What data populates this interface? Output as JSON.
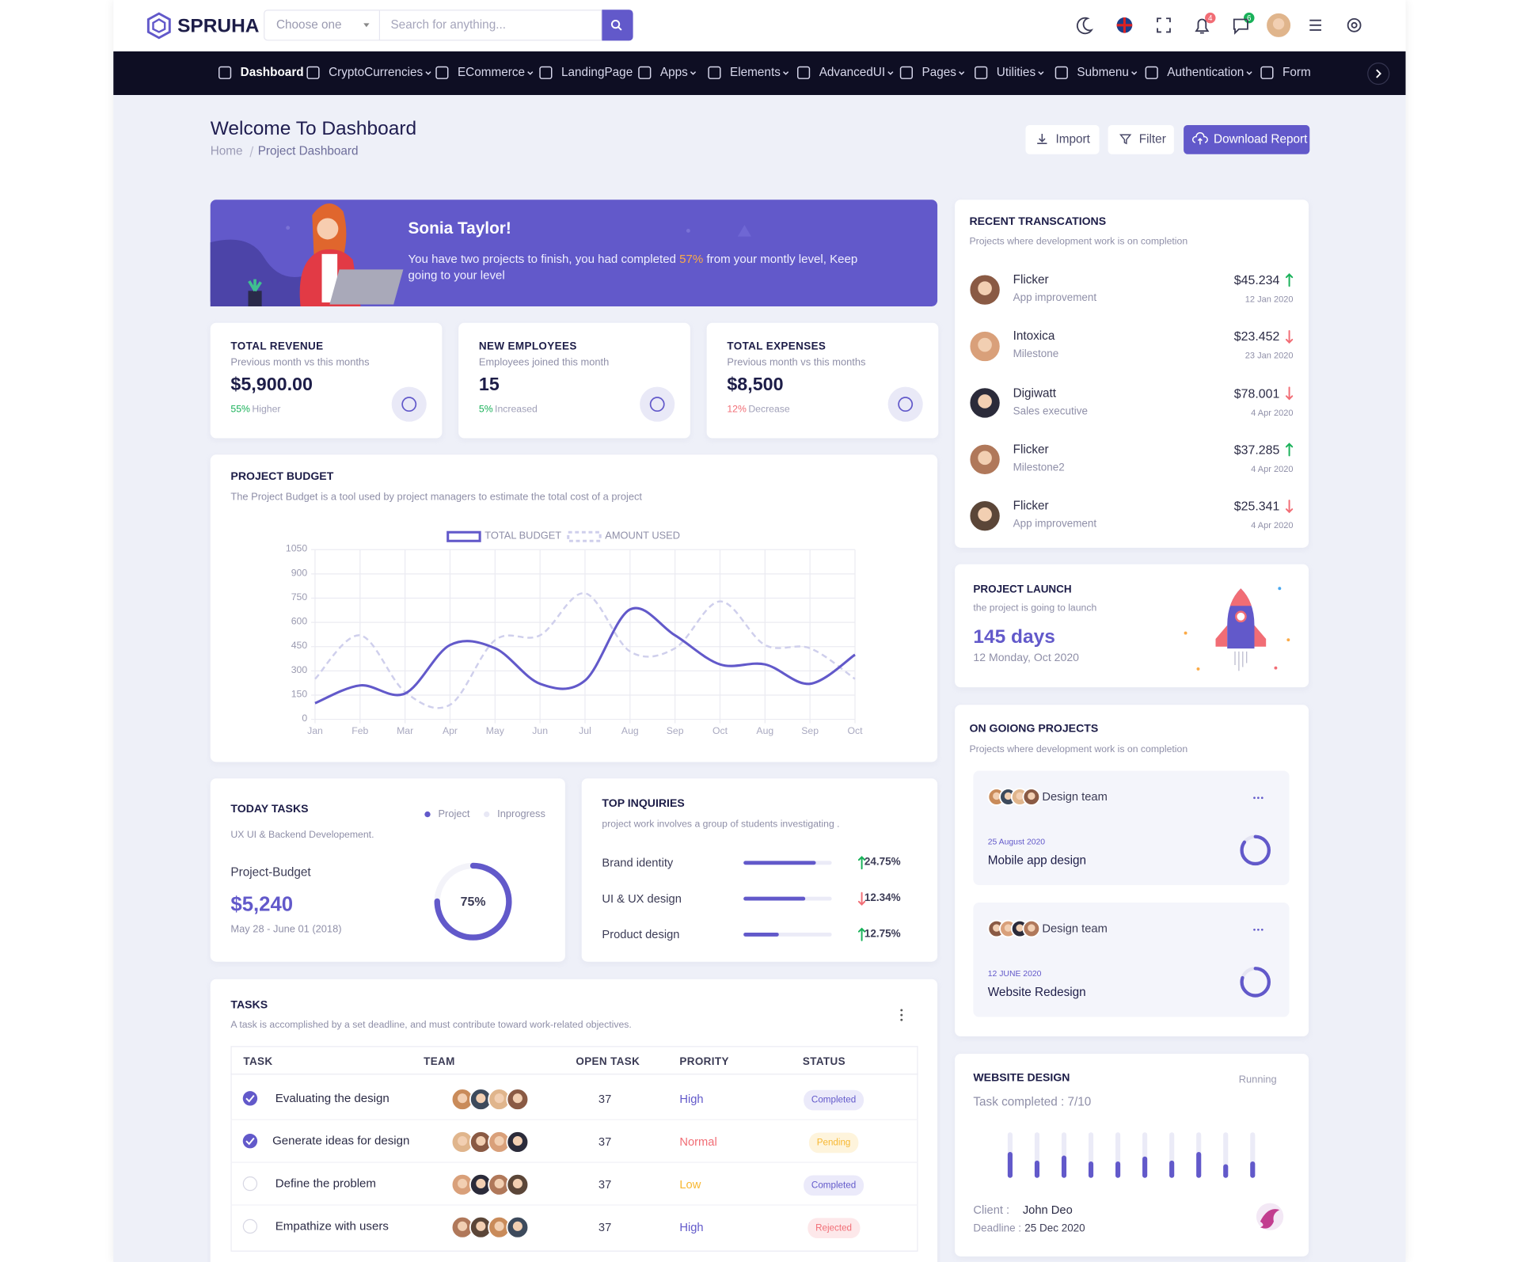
{
  "header": {
    "logo": "SPRUHA",
    "select": "Choose one",
    "search_placeholder": "Search for anything...",
    "notification_count": 4,
    "message_count": 6
  },
  "nav": {
    "items": [
      "Dashboard",
      "CryptoCurrencies",
      "ECommerce",
      "LandingPage",
      "Apps",
      "Elements",
      "AdvancedUI",
      "Pages",
      "Utilities",
      "Submenu",
      "Authentication",
      "Form"
    ]
  },
  "page_header": {
    "title": "Welcome To Dashboard",
    "breadcrumb": [
      "Home",
      "Project Dashboard"
    ],
    "actions": [
      "Import",
      "Filter",
      "Download Report"
    ]
  },
  "banner": {
    "name": "Sonia Taylor!",
    "message_start": "You have two projects to finish, you had completed ",
    "message_highlight": "57%",
    "message_end": " from your montly level, Keep going to your level"
  },
  "stats": [
    {
      "title": "TOTAL REVENUE",
      "subtitle": "Previous month vs this months",
      "value": "$5,900.00",
      "change": "55%",
      "change_label": "Higher",
      "change_color": "#19b159"
    },
    {
      "title": "NEW EMPLOYEES",
      "subtitle": "Employees joined this month",
      "value": 15,
      "change": "5%",
      "change_label": "Increased",
      "change_color": "#19b159"
    },
    {
      "title": "TOTAL EXPENSES",
      "subtitle": "Previous month vs this months",
      "value": "$8,500",
      "change": "12%",
      "change_label": "Decrease",
      "change_color": "#f16d75"
    }
  ],
  "chart_data": [
    {
      "type": "line",
      "title": "PROJECT BUDGET",
      "subtitle": "The Project Budget is a tool used by project managers to estimate the total cost of a project",
      "categories": [
        "Jan",
        "Feb",
        "Mar",
        "Apr",
        "May",
        "Jun",
        "Jul",
        "Aug",
        "Sep",
        "Oct",
        "Aug",
        "Sep",
        "Oct"
      ],
      "series": [
        {
          "name": "TOTAL BUDGET",
          "color": "#6259ca",
          "dashed": false,
          "values": [
            100,
            210,
            160,
            460,
            440,
            220,
            240,
            680,
            520,
            340,
            340,
            220,
            400
          ]
        },
        {
          "name": "AMOUNT USED",
          "color": "#cfcfec",
          "dashed": true,
          "values": [
            250,
            520,
            170,
            90,
            490,
            520,
            780,
            420,
            440,
            730,
            460,
            440,
            250
          ]
        }
      ],
      "ylim": [
        0,
        1050
      ],
      "yticks": [
        0,
        150,
        300,
        450,
        600,
        750,
        900,
        1050
      ],
      "grid": true,
      "legend": "top"
    },
    {
      "type": "bar",
      "values": [
        57,
        38,
        49,
        36,
        36,
        47,
        38,
        57,
        30,
        36
      ],
      "ylim": [
        0,
        100
      ],
      "color": "#6259ca",
      "track_color": "#ebebf7"
    }
  ],
  "today_tasks": {
    "title": "TODAY TASKS",
    "legend": [
      "Project",
      "Inprogress"
    ],
    "legend_colors": [
      "#6259ca",
      "#e8e8f5"
    ],
    "subtitle": "UX UI & Backend Developement.",
    "budget_label": "Project-Budget",
    "budget": "$5,240",
    "dates": "May 28 - June 01 (2018)",
    "progress": {
      "value": 75,
      "label": "75%"
    }
  },
  "top_inquiries": {
    "title": "TOP INQUIRIES",
    "subtitle": "project work involves a group of students investigating .",
    "items": [
      {
        "name": "Brand identity",
        "progress": 82,
        "change": "24.75%",
        "trend": "up"
      },
      {
        "name": "UI & UX design",
        "progress": 70,
        "change": "12.34%",
        "trend": "down"
      },
      {
        "name": "Product design",
        "progress": 40,
        "change": "12.75%",
        "trend": "up"
      }
    ]
  },
  "tasks": {
    "title": "TASKS",
    "subtitle": "A task is accomplished by a set deadline, and must contribute toward work-related objectives.",
    "columns": [
      "TASK",
      "TEAM",
      "OPEN TASK",
      "PRORITY",
      "STATUS"
    ],
    "rows": [
      {
        "task": "Evaluating the design",
        "done": true,
        "open_tasks": 37,
        "priority": "High",
        "priority_color": "#6259ca",
        "status": "Completed",
        "status_color": "#6259ca",
        "status_bg": "#ebeafa"
      },
      {
        "task": "Generate ideas for design",
        "done": true,
        "open_tasks": 37,
        "priority": "Normal",
        "priority_color": "#f16d75",
        "status": "Pending",
        "status_color": "#f7b731",
        "status_bg": "#fef4dc"
      },
      {
        "task": "Define the problem",
        "done": false,
        "open_tasks": 37,
        "priority": "Low",
        "priority_color": "#f7b731",
        "status": "Completed",
        "status_color": "#6259ca",
        "status_bg": "#ebeafa"
      },
      {
        "task": "Empathize with users",
        "done": false,
        "open_tasks": 37,
        "priority": "High",
        "priority_color": "#6259ca",
        "status": "Rejected",
        "status_color": "#f16d75",
        "status_bg": "#fde8ea"
      }
    ]
  },
  "transactions": {
    "title": "RECENT TRANSCATIONS",
    "subtitle": "Projects where development work is on completion",
    "items": [
      {
        "name": "Flicker",
        "detail": "App improvement",
        "amount": "$45.234",
        "trend": "up",
        "date": "12 Jan 2020"
      },
      {
        "name": "Intoxica",
        "detail": "Milestone",
        "amount": "$23.452",
        "trend": "down",
        "date": "23 Jan 2020"
      },
      {
        "name": "Digiwatt",
        "detail": "Sales executive",
        "amount": "$78.001",
        "trend": "down",
        "date": "4 Apr 2020"
      },
      {
        "name": "Flicker",
        "detail": "Milestone2",
        "amount": "$37.285",
        "trend": "up",
        "date": "4 Apr 2020"
      },
      {
        "name": "Flicker",
        "detail": "App improvement",
        "amount": "$25.341",
        "trend": "down",
        "date": "4 Apr 2020"
      }
    ]
  },
  "project_launch": {
    "title": "PROJECT LAUNCH",
    "subtitle": "the project is going to launch",
    "days": "145 days",
    "date": "12 Monday, Oct 2020"
  },
  "ongoing_projects": {
    "title": "ON GOIONG PROJECTS",
    "subtitle": "Projects where development work is on completion",
    "items": [
      {
        "team": "Design team",
        "date": "25 August 2020",
        "name": "Mobile app design",
        "progress": 85
      },
      {
        "team": "Design team",
        "date": "12 JUNE 2020",
        "name": "Website Redesign",
        "progress": 80
      }
    ]
  },
  "website_design": {
    "title": "WEBSITE DESIGN",
    "status": "Running",
    "progress_text": "Task completed : 7/10",
    "client_label": "Client :",
    "client": "John Deo",
    "deadline_label": "Deadline :",
    "deadline": "25 Dec 2020"
  }
}
